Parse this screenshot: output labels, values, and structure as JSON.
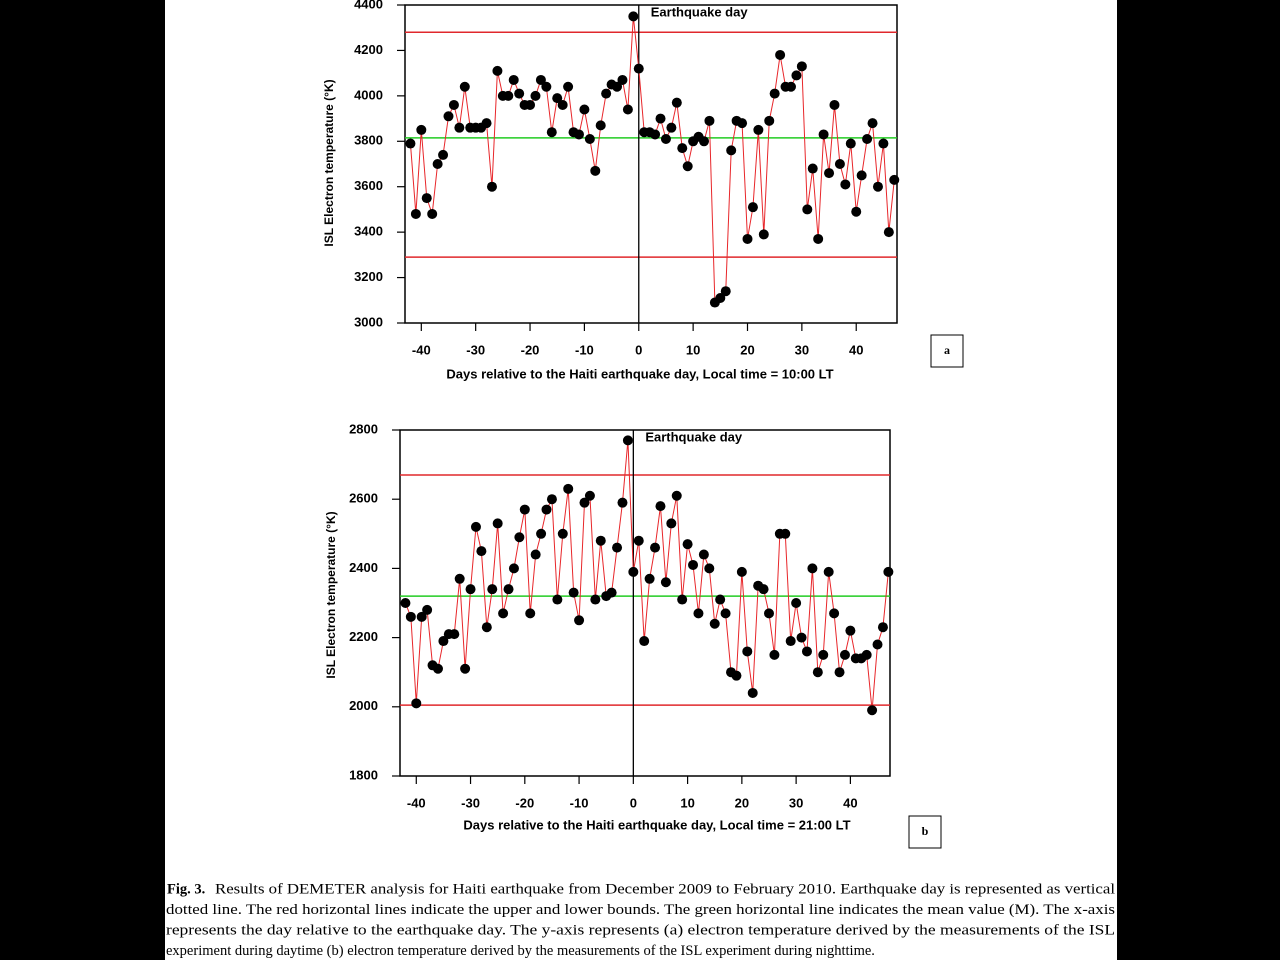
{
  "chart_data": [
    {
      "type": "line",
      "x_label": "Days relative to the Haiti earthquake day, Local time = 10:00 LT",
      "y_label": "ISL Electron temperature (°K)",
      "panel_label": "a",
      "xlim": [
        -43,
        47.5
      ],
      "xticks": [
        -40,
        -30,
        -20,
        -10,
        0,
        10,
        20,
        30,
        40
      ],
      "ylim": [
        3000,
        4400
      ],
      "yticks": [
        3000,
        3200,
        3400,
        3600,
        3800,
        4000,
        4200,
        4400
      ],
      "annotation": {
        "x": 0,
        "text": "Earthquake day"
      },
      "reference_lines": [
        {
          "value": 4280,
          "color": "#e0282c"
        },
        {
          "value": 3290,
          "color": "#e0282c"
        },
        {
          "value": 3815,
          "color": "#22cc22"
        }
      ],
      "series": [
        {
          "color": "#e8262a",
          "marker_color": "#000000",
          "x": [
            -42,
            -41,
            -40,
            -39,
            -38,
            -37,
            -36,
            -35,
            -34,
            -33,
            -32,
            -31,
            -30,
            -29,
            -28,
            -27,
            -26,
            -25,
            -24,
            -23,
            -22,
            -21,
            -20,
            -19,
            -18,
            -17,
            -16,
            -15,
            -14,
            -13,
            -12,
            -11,
            -10,
            -9,
            -8,
            -7,
            -6,
            -5,
            -4,
            -3,
            -2,
            -1,
            0,
            1,
            2,
            3,
            4,
            5,
            6,
            7,
            8,
            9,
            10,
            11,
            12,
            13,
            14,
            15,
            16,
            17,
            18,
            19,
            20,
            21,
            22,
            23,
            24,
            25,
            26,
            27,
            28,
            29,
            30,
            31,
            32,
            33,
            34,
            35,
            36,
            37,
            38,
            39,
            40,
            41,
            42,
            43,
            44,
            45,
            46,
            47
          ],
          "values": [
            3790,
            3480,
            3850,
            3550,
            3480,
            3700,
            3740,
            3910,
            3960,
            3860,
            4040,
            3860,
            3860,
            3860,
            3880,
            3600,
            4110,
            4000,
            4000,
            4070,
            4010,
            3960,
            3960,
            4000,
            4070,
            4040,
            3840,
            3990,
            3960,
            4040,
            3840,
            3830,
            3940,
            3810,
            3670,
            3870,
            4010,
            4050,
            4040,
            4070,
            3940,
            4350,
            4120,
            3840,
            3840,
            3830,
            3900,
            3810,
            3860,
            3970,
            3770,
            3690,
            3800,
            3820,
            3800,
            3890,
            3090,
            3110,
            3140,
            3760,
            3890,
            3880,
            3370,
            3510,
            3850,
            3390,
            3890,
            4010,
            4180,
            4040,
            4040,
            4090,
            4130,
            3500,
            3680,
            3370,
            3830,
            3660,
            3960,
            3700,
            3610,
            3790,
            3490,
            3650,
            3810,
            3880,
            3600,
            3790,
            3400,
            3630
          ]
        }
      ]
    },
    {
      "type": "line",
      "x_label": "Days relative to the Haiti earthquake day, Local time = 21:00 LT",
      "y_label": "ISL Electron temperature (°K)",
      "panel_label": "b",
      "xlim": [
        -43,
        47.3
      ],
      "xticks": [
        -40,
        -30,
        -20,
        -10,
        0,
        10,
        20,
        30,
        40
      ],
      "ylim": [
        1800,
        2800
      ],
      "yticks": [
        1800,
        2000,
        2200,
        2400,
        2600,
        2800
      ],
      "annotation": {
        "x": 0,
        "text": "Earthquake day"
      },
      "reference_lines": [
        {
          "value": 2670,
          "color": "#e0282c"
        },
        {
          "value": 2005,
          "color": "#e0282c"
        },
        {
          "value": 2320,
          "color": "#22cc22"
        }
      ],
      "series": [
        {
          "color": "#e8262a",
          "marker_color": "#000000",
          "x": [
            -42,
            -41,
            -40,
            -39,
            -38,
            -37,
            -36,
            -35,
            -34,
            -33,
            -32,
            -31,
            -30,
            -29,
            -28,
            -27,
            -26,
            -25,
            -24,
            -23,
            -22,
            -21,
            -20,
            -19,
            -18,
            -17,
            -16,
            -15,
            -14,
            -13,
            -12,
            -11,
            -10,
            -9,
            -8,
            -7,
            -6,
            -5,
            -4,
            -3,
            -2,
            -1,
            0,
            1,
            2,
            3,
            4,
            5,
            6,
            7,
            8,
            9,
            10,
            11,
            12,
            13,
            14,
            15,
            16,
            17,
            18,
            19,
            20,
            21,
            22,
            23,
            24,
            25,
            26,
            27,
            28,
            29,
            30,
            31,
            32,
            33,
            34,
            35,
            36,
            37,
            38,
            39,
            40,
            41,
            42,
            43,
            44,
            45,
            46,
            47
          ],
          "values": [
            2300,
            2260,
            2010,
            2260,
            2280,
            2120,
            2110,
            2190,
            2210,
            2210,
            2370,
            2110,
            2340,
            2520,
            2450,
            2230,
            2340,
            2530,
            2270,
            2340,
            2400,
            2490,
            2570,
            2270,
            2440,
            2500,
            2570,
            2600,
            2310,
            2500,
            2630,
            2330,
            2250,
            2590,
            2610,
            2310,
            2480,
            2320,
            2330,
            2460,
            2590,
            2770,
            2390,
            2480,
            2190,
            2370,
            2460,
            2580,
            2360,
            2530,
            2610,
            2310,
            2470,
            2410,
            2270,
            2440,
            2400,
            2240,
            2310,
            2270,
            2100,
            2090,
            2390,
            2160,
            2040,
            2350,
            2340,
            2270,
            2150,
            2500,
            2500,
            2190,
            2300,
            2200,
            2160,
            2400,
            2100,
            2150,
            2390,
            2270,
            2100,
            2150,
            2220,
            2140,
            2140,
            2150,
            1990,
            2180,
            2230,
            2390
          ]
        }
      ]
    }
  ],
  "caption": {
    "label": "Fig. 3.",
    "lines": [
      "Results of DEMETER analysis for Haiti earthquake from December 2009 to February 2010. Earthquake day is represented as vertical",
      "dotted line. The red horizontal lines indicate the upper and lower bounds. The green horizontal line indicates the mean value (M). The x-axis",
      "represents the day relative to the earthquake day. The y-axis represents (a) electron temperature derived by the measurements of the ISL",
      "experiment during daytime (b) electron temperature derived by the measurements of the ISL experiment during nighttime."
    ]
  }
}
